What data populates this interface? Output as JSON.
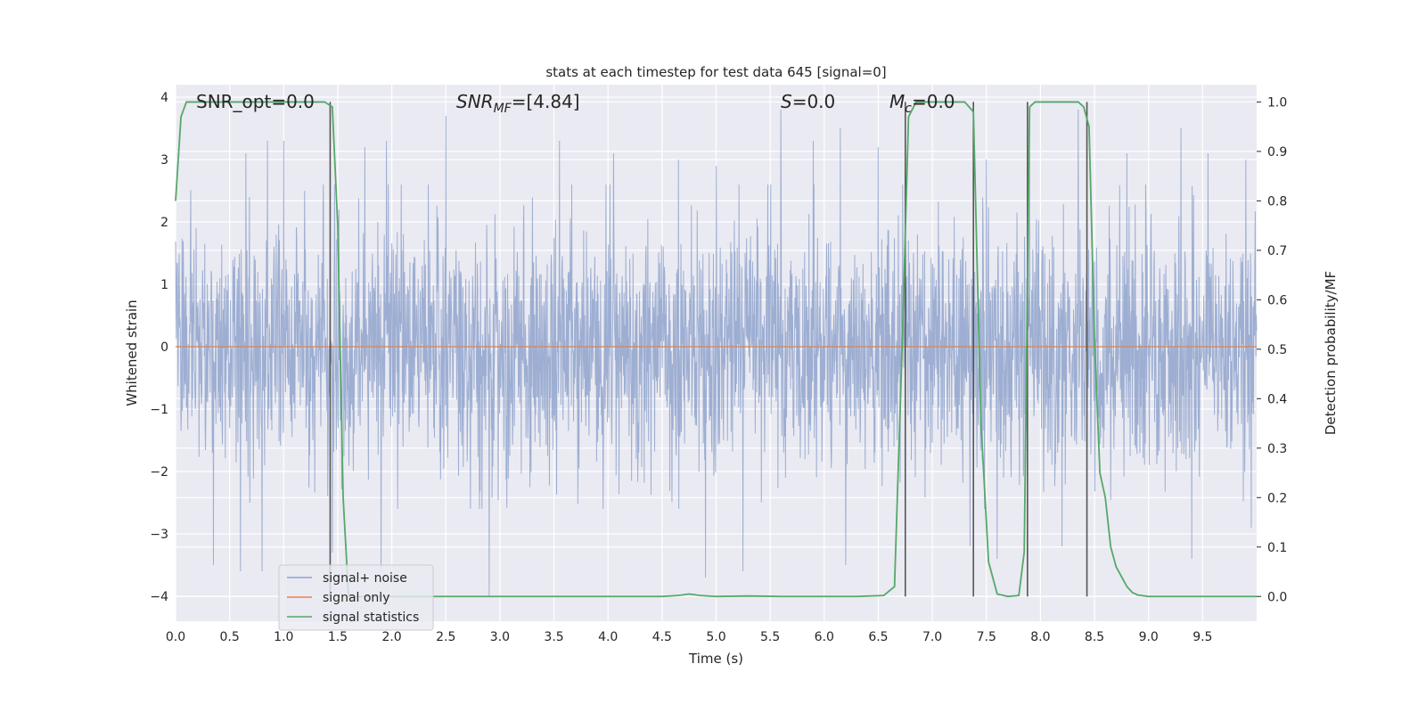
{
  "chart_data": {
    "type": "line",
    "title": "stats at each timestep for test data 645 [signal=0]",
    "xlabel": "Time (s)",
    "ylabel_left": "Whitened strain",
    "ylabel_right": "Detection probability/MF",
    "xlim": [
      0.0,
      10.0
    ],
    "ylim_left": [
      -4.4,
      4.2
    ],
    "ylim_right": [
      -0.05,
      1.035
    ],
    "x_ticks": [
      "0.0",
      "0.5",
      "1.0",
      "1.5",
      "2.0",
      "2.5",
      "3.0",
      "3.5",
      "4.0",
      "4.5",
      "5.0",
      "5.5",
      "6.0",
      "6.5",
      "7.0",
      "7.5",
      "8.0",
      "8.5",
      "9.0",
      "9.5"
    ],
    "y_ticks_left": [
      "−4",
      "−3",
      "−2",
      "−1",
      "0",
      "1",
      "2",
      "3",
      "4"
    ],
    "y_ticks_right": [
      "0.0",
      "0.1",
      "0.2",
      "0.3",
      "0.4",
      "0.5",
      "0.6",
      "0.7",
      "0.8",
      "0.9",
      "1.0"
    ],
    "grid": true,
    "legend_placement": "lower-left",
    "annotations": {
      "snr_opt": "SNR_opt=0.0",
      "snr_mf_main": "SNR",
      "snr_mf_sub": "MF",
      "snr_mf_val": "=[4.84]",
      "s_main": "S",
      "s_val": "=0.0",
      "mc_main": "M",
      "mc_sub": "c",
      "mc_val": "=0.0"
    },
    "series": [
      {
        "name": "signal+ noise",
        "color": "#8fa3cc",
        "axis": "left",
        "description_envelope": {
          "typical_upper": 1.6,
          "typical_lower": -1.7,
          "peak_spikes_x": [
            0.35,
            0.65,
            0.85,
            1.0,
            1.75,
            1.95,
            2.5,
            2.9,
            3.55,
            4.05,
            4.65,
            5.0,
            5.6,
            5.9,
            6.15,
            6.5,
            6.75,
            7.5,
            7.9,
            8.35,
            8.8,
            9.3,
            9.55,
            9.9
          ],
          "peak_spikes_y": [
            3.0,
            3.1,
            3.3,
            3.3,
            3.2,
            3.3,
            3.7,
            3.0,
            3.3,
            3.1,
            3.0,
            2.9,
            3.8,
            3.3,
            3.5,
            3.2,
            3.5,
            3.0,
            3.1,
            3.8,
            3.1,
            3.5,
            3.1,
            3.0
          ],
          "trough_spikes_x": [
            0.35,
            0.6,
            0.8,
            1.45,
            1.9,
            2.9,
            4.9,
            5.25,
            6.2,
            7.35,
            7.6,
            8.2,
            9.4,
            9.95
          ],
          "trough_spikes_y": [
            -3.5,
            -3.6,
            -3.6,
            -3.3,
            -3.6,
            -4.0,
            -3.7,
            -3.6,
            -3.5,
            -3.2,
            -3.4,
            -3.2,
            -3.4,
            -2.9
          ]
        }
      },
      {
        "name": "signal only",
        "color": "#dd8452",
        "axis": "left",
        "x": [
          0.0,
          10.0
        ],
        "y": [
          0.0,
          0.0
        ]
      },
      {
        "name": "signal statistics",
        "color": "#55a868",
        "axis": "right",
        "x": [
          0.0,
          0.05,
          0.1,
          0.2,
          0.3,
          0.4,
          0.5,
          0.6,
          0.7,
          0.8,
          0.9,
          1.0,
          1.1,
          1.2,
          1.3,
          1.38,
          1.45,
          1.5,
          1.55,
          1.6,
          1.7,
          2.0,
          2.5,
          3.0,
          3.5,
          4.0,
          4.5,
          4.65,
          4.75,
          4.85,
          5.0,
          5.3,
          5.6,
          6.0,
          6.3,
          6.55,
          6.65,
          6.72,
          6.78,
          6.85,
          6.95,
          7.1,
          7.3,
          7.38,
          7.45,
          7.52,
          7.6,
          7.7,
          7.8,
          7.85,
          7.9,
          7.95,
          8.05,
          8.2,
          8.35,
          8.4,
          8.45,
          8.5,
          8.55,
          8.6,
          8.65,
          8.7,
          8.75,
          8.8,
          8.85,
          8.9,
          9.0,
          9.2,
          9.5,
          9.8,
          10.0
        ],
        "y": [
          0.8,
          0.97,
          1.0,
          1.0,
          1.0,
          1.0,
          1.0,
          1.0,
          1.0,
          1.0,
          1.0,
          1.0,
          1.0,
          1.0,
          1.0,
          1.0,
          0.99,
          0.75,
          0.2,
          0.0,
          0.0,
          0.0,
          0.0,
          0.0,
          0.0,
          0.0,
          0.0,
          0.002,
          0.005,
          0.002,
          0.0,
          0.001,
          0.0,
          0.0,
          0.0,
          0.002,
          0.02,
          0.5,
          0.97,
          1.0,
          1.0,
          1.0,
          1.0,
          0.98,
          0.35,
          0.07,
          0.005,
          0.0,
          0.002,
          0.09,
          0.99,
          1.0,
          1.0,
          1.0,
          1.0,
          0.99,
          0.95,
          0.52,
          0.25,
          0.2,
          0.1,
          0.06,
          0.04,
          0.02,
          0.008,
          0.003,
          0.0,
          0.0,
          0.0,
          0.0,
          0.0
        ]
      }
    ],
    "vlines_x": [
      1.43,
      6.75,
      7.38,
      7.88,
      8.43
    ],
    "vlines_color": "#555555"
  }
}
